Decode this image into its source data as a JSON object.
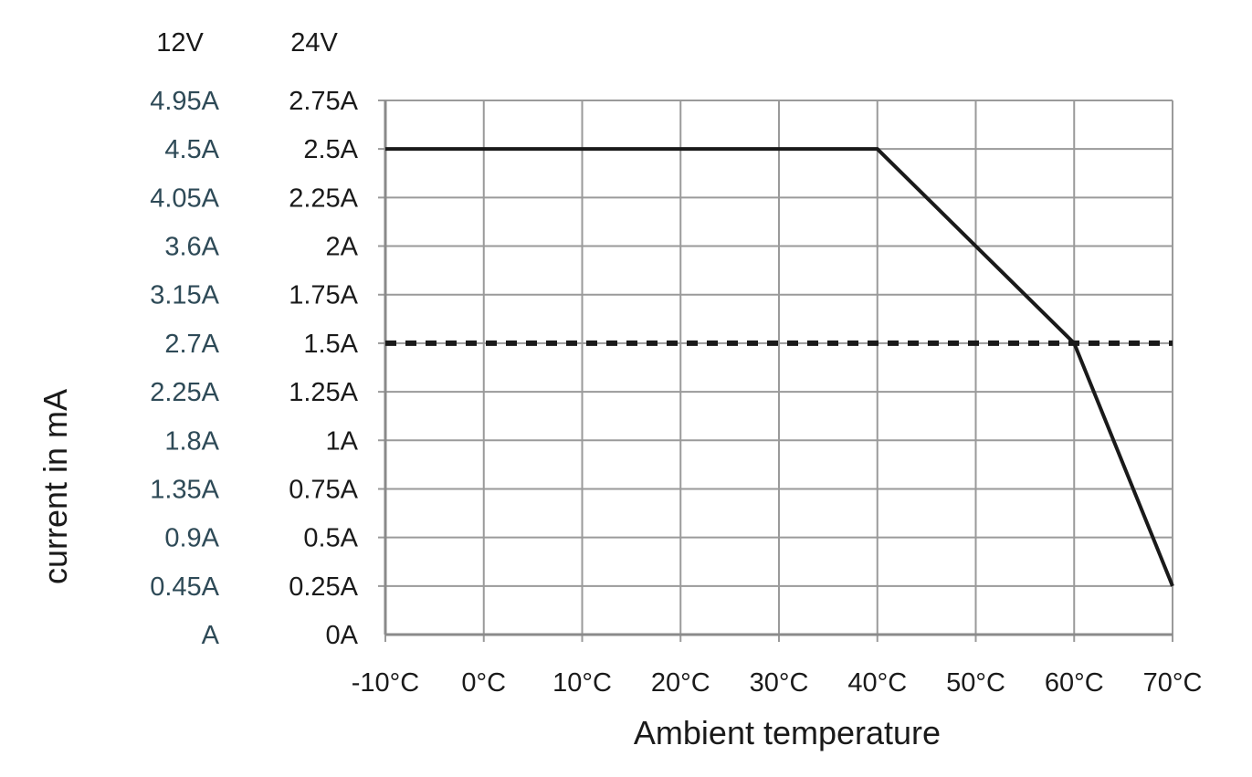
{
  "chart_data": {
    "type": "line",
    "xlabel": "Ambient temperature",
    "ylabel": "current in mA",
    "x_ticks": [
      "-10°C",
      "0°C",
      "10°C",
      "20°C",
      "30°C",
      "40°C",
      "50°C",
      "60°C",
      "70°C"
    ],
    "xlim": [
      -10,
      70
    ],
    "ylim": [
      0,
      2.75
    ],
    "y_axis_headers": [
      "12V",
      "24V"
    ],
    "y_ticks_12v": [
      "A",
      "0.45A",
      "0.9A",
      "1.35A",
      "1.8A",
      "2.25A",
      "2.7A",
      "3.15A",
      "3.6A",
      "4.05A",
      "4.5A",
      "4.95A"
    ],
    "y_ticks_24v": [
      "0A",
      "0.25A",
      "0.5A",
      "0.75A",
      "1A",
      "1.25A",
      "1.5A",
      "1.75A",
      "2A",
      "2.25A",
      "2.5A",
      "2.75A"
    ],
    "y_tick_values": [
      0,
      0.25,
      0.5,
      0.75,
      1,
      1.25,
      1.5,
      1.75,
      2,
      2.25,
      2.5,
      2.75
    ],
    "grid": true,
    "series": [
      {
        "style": "solid",
        "color": "#1a1a1a",
        "x": [
          -10,
          40,
          50,
          60,
          70
        ],
        "y": [
          2.5,
          2.5,
          2.0,
          1.5,
          0.25
        ]
      },
      {
        "style": "dashed",
        "color": "#1a1a1a",
        "x": [
          -10,
          70
        ],
        "y": [
          1.5,
          1.5
        ]
      }
    ]
  }
}
